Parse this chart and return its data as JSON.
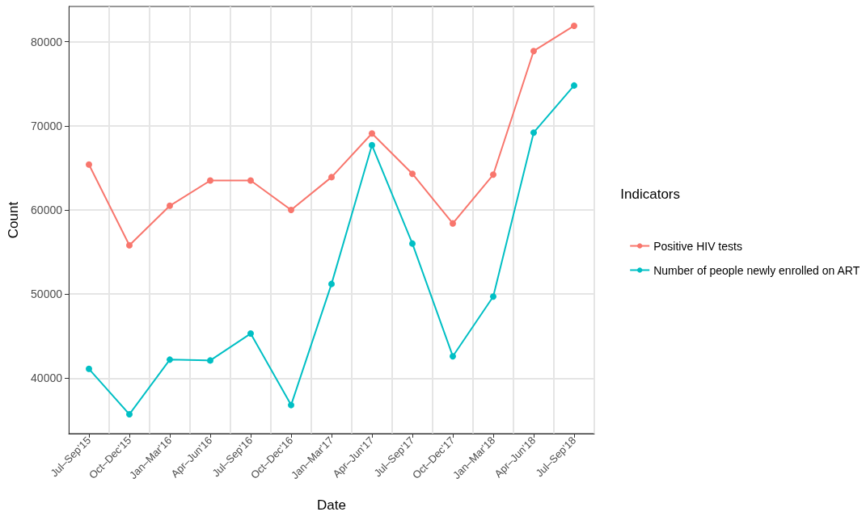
{
  "chart_data": {
    "type": "line",
    "xlabel": "Date",
    "ylabel": "Count",
    "legend_title": "Indicators",
    "categories": [
      "Jul–Sep'15",
      "Oct–Dec'15",
      "Jan–Mar'16",
      "Apr–Jun'16",
      "Jul–Sep'16",
      "Oct–Dec'16",
      "Jan–Mar'17",
      "Apr–Jun'17",
      "Jul–Sep'17",
      "Oct–Dec'17",
      "Jan–Mar'18",
      "Apr–Jun'18",
      "Jul–Sep'18"
    ],
    "series": [
      {
        "name": "Positive HIV tests",
        "color": "#f8766d",
        "values": [
          65400,
          55800,
          60500,
          63500,
          63500,
          60000,
          63900,
          69100,
          64300,
          58400,
          64200,
          78900,
          81900
        ]
      },
      {
        "name": "Number of people newly enrolled on ART",
        "color": "#00bfc4",
        "values": [
          41100,
          35700,
          42200,
          42100,
          45300,
          36800,
          51200,
          67700,
          56000,
          42600,
          49700,
          69200,
          74800
        ]
      }
    ],
    "ylim": [
      33400,
      84200
    ],
    "yticks": [
      40000,
      50000,
      60000,
      70000,
      80000
    ],
    "grid": true,
    "legend": "right",
    "marker": "circle",
    "line_style": "solid"
  }
}
